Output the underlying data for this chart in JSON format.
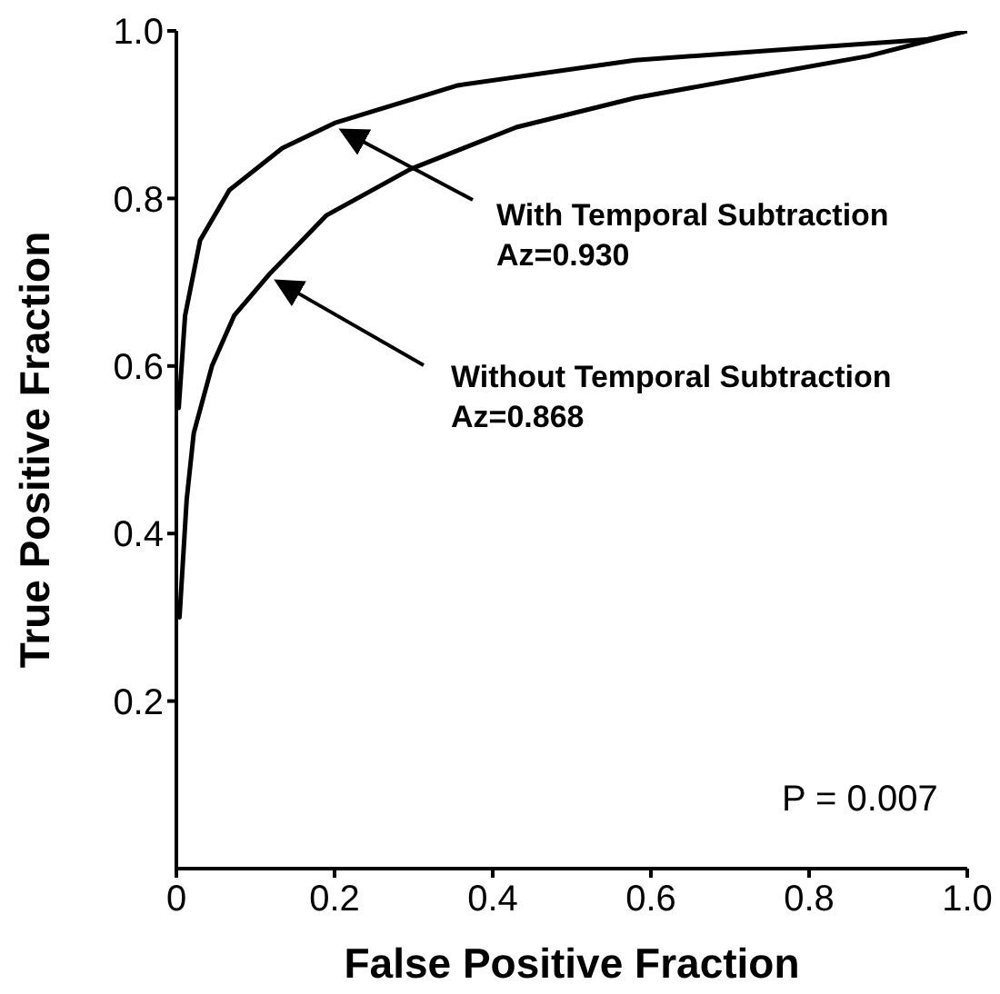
{
  "chart_data": {
    "type": "line",
    "xlabel": "False Positive Fraction",
    "ylabel": "True Positive Fraction",
    "xlim": [
      0,
      1
    ],
    "ylim": [
      0,
      1
    ],
    "xticks": [
      0,
      0.2,
      0.4,
      0.6,
      0.8,
      {
        "value": 1,
        "label": "1.0"
      }
    ],
    "yticks": [
      0.2,
      0.4,
      0.6,
      0.8,
      {
        "value": 1,
        "label": "1.0"
      }
    ],
    "grid": false,
    "marker": "none",
    "line_style": "solid",
    "series": [
      {
        "color": "#000000",
        "x": [
          0.003,
          0.011,
          0.03,
          0.067,
          0.134,
          0.2,
          0.356,
          0.58,
          0.8,
          0.95,
          1
        ],
        "values": [
          0.55,
          0.66,
          0.75,
          0.81,
          0.86,
          0.89,
          0.935,
          0.965,
          0.98,
          0.99,
          1
        ]
      },
      {
        "color": "#000000",
        "x": [
          0.004,
          0.013,
          0.022,
          0.045,
          0.073,
          0.118,
          0.19,
          0.296,
          0.43,
          0.58,
          0.726,
          0.875,
          1
        ],
        "values": [
          0.3,
          0.44,
          0.52,
          0.6,
          0.66,
          0.71,
          0.78,
          0.835,
          0.885,
          0.92,
          0.945,
          0.97,
          1
        ]
      }
    ],
    "annotations": [
      {
        "text": "With Temporal Subtraction Az=0.930",
        "x": 0.2,
        "y": 0.89
      },
      {
        "text": "Without Temporal Subtraction Az=0.868",
        "x": 0.118,
        "y": 0.71
      },
      "P = 0.007"
    ]
  }
}
